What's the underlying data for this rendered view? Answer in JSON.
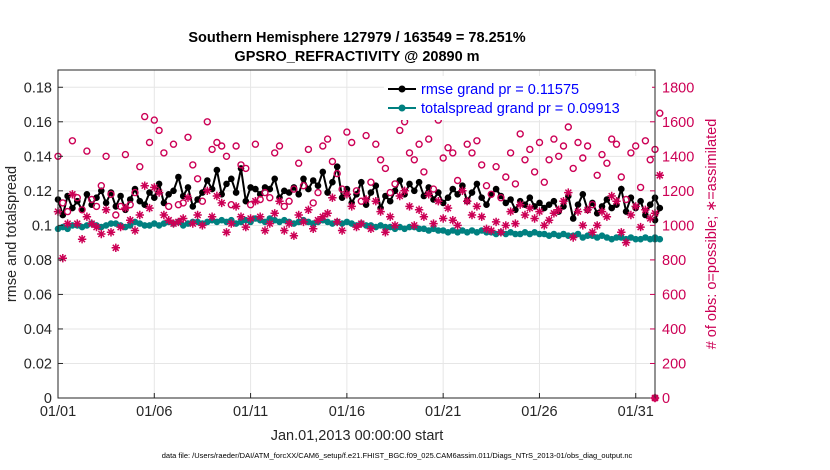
{
  "chart_data": {
    "type": "line",
    "title_line1": "Southern Hemisphere 127979 / 163549 = 78.251%",
    "title_line2": "GPSRO_REFRACTIVITY @ 20890 m",
    "xlabel": "Jan.01,2013 00:00:00 start",
    "ylabel_left": "rmse and totalspread",
    "ylabel_right": "# of obs: o=possible; ∗=assimilated",
    "xlim": [
      0,
      31
    ],
    "ylim_left": [
      0,
      0.19
    ],
    "ylim_right": [
      0,
      1900
    ],
    "x_ticks": [
      0,
      5,
      10,
      15,
      20,
      25,
      30
    ],
    "x_tick_labels": [
      "01/01",
      "01/06",
      "01/11",
      "01/16",
      "01/21",
      "01/26",
      "01/31"
    ],
    "y_ticks_left": [
      0,
      0.02,
      0.04,
      0.06,
      0.08,
      0.1,
      0.12,
      0.14,
      0.16,
      0.18
    ],
    "y_tick_labels_left": [
      "0",
      "0.02",
      "0.04",
      "0.06",
      "0.08",
      "0.1",
      "0.12",
      "0.14",
      "0.16",
      "0.18"
    ],
    "y_ticks_right": [
      0,
      200,
      400,
      600,
      800,
      1000,
      1200,
      1400,
      1600,
      1800
    ],
    "y_tick_labels_right": [
      "0",
      "200",
      "400",
      "600",
      "800",
      "1000",
      "1200",
      "1400",
      "1600",
      "1800"
    ],
    "legend": [
      {
        "label": "rmse grand pr = 0.11575",
        "color": "#000000",
        "text_color": "#0000ff"
      },
      {
        "label": "totalspread grand pr = 0.09913",
        "color": "#008080",
        "text_color": "#0000ff"
      }
    ],
    "series": [
      {
        "name": "rmse",
        "axis": "left",
        "color": "#000000",
        "x_start": 0,
        "x_step": 0.25,
        "values": [
          0.115,
          0.106,
          0.117,
          0.11,
          0.114,
          0.109,
          0.118,
          0.112,
          0.116,
          0.12,
          0.113,
          0.119,
          0.111,
          0.117,
          0.109,
          0.115,
          0.121,
          0.114,
          0.112,
          0.119,
          0.116,
          0.124,
          0.113,
          0.118,
          0.12,
          0.128,
          0.117,
          0.122,
          0.111,
          0.115,
          0.119,
          0.126,
          0.121,
          0.132,
          0.118,
          0.124,
          0.127,
          0.119,
          0.133,
          0.114,
          0.122,
          0.121,
          0.118,
          0.122,
          0.121,
          0.127,
          0.116,
          0.12,
          0.119,
          0.122,
          0.118,
          0.127,
          0.121,
          0.126,
          0.123,
          0.131,
          0.119,
          0.125,
          0.134,
          0.116,
          0.121,
          0.113,
          0.118,
          0.125,
          0.112,
          0.119,
          0.123,
          0.11,
          0.117,
          0.114,
          0.12,
          0.126,
          0.118,
          0.124,
          0.12,
          0.125,
          0.117,
          0.122,
          0.115,
          0.119,
          0.113,
          0.116,
          0.121,
          0.118,
          0.123,
          0.114,
          0.119,
          0.124,
          0.116,
          0.112,
          0.118,
          0.121,
          0.117,
          0.113,
          0.115,
          0.109,
          0.114,
          0.112,
          0.116,
          0.111,
          0.113,
          0.11,
          0.112,
          0.114,
          0.108,
          0.111,
          0.117,
          0.104,
          0.112,
          0.118,
          0.109,
          0.113,
          0.107,
          0.111,
          0.115,
          0.11,
          0.112,
          0.121,
          0.108,
          0.116,
          0.11,
          0.114,
          0.106,
          0.112,
          0.116,
          0.11
        ],
        "last_x": 31,
        "last_value": 0.103
      },
      {
        "name": "totalspread",
        "axis": "left",
        "color": "#008080",
        "x_start": 0,
        "x_step": 0.25,
        "values": [
          0.098,
          0.099,
          0.098,
          0.1,
          0.1,
          0.099,
          0.1,
          0.101,
          0.1,
          0.099,
          0.1,
          0.101,
          0.101,
          0.1,
          0.099,
          0.1,
          0.102,
          0.101,
          0.1,
          0.1,
          0.101,
          0.1,
          0.101,
          0.102,
          0.101,
          0.102,
          0.1,
          0.101,
          0.102,
          0.102,
          0.101,
          0.102,
          0.103,
          0.102,
          0.103,
          0.102,
          0.103,
          0.101,
          0.102,
          0.103,
          0.102,
          0.104,
          0.103,
          0.102,
          0.104,
          0.103,
          0.102,
          0.103,
          0.102,
          0.101,
          0.102,
          0.103,
          0.102,
          0.101,
          0.102,
          0.103,
          0.102,
          0.101,
          0.102,
          0.101,
          0.102,
          0.101,
          0.1,
          0.101,
          0.1,
          0.1,
          0.099,
          0.1,
          0.099,
          0.099,
          0.098,
          0.099,
          0.098,
          0.099,
          0.099,
          0.098,
          0.098,
          0.097,
          0.098,
          0.097,
          0.097,
          0.096,
          0.097,
          0.096,
          0.097,
          0.096,
          0.097,
          0.096,
          0.097,
          0.096,
          0.096,
          0.095,
          0.096,
          0.095,
          0.096,
          0.095,
          0.095,
          0.096,
          0.095,
          0.096,
          0.095,
          0.095,
          0.094,
          0.095,
          0.094,
          0.095,
          0.094,
          0.094,
          0.095,
          0.093,
          0.094,
          0.094,
          0.093,
          0.094,
          0.093,
          0.092,
          0.093,
          0.093,
          0.092,
          0.093,
          0.092,
          0.092,
          0.093,
          0.092,
          0.093,
          0.092
        ],
        "last_x": 31,
        "last_value": 0.092
      },
      {
        "name": "possible obs",
        "axis": "right",
        "color": "#cc0055",
        "marker": "o",
        "x_start": 0,
        "x_step": 0.25,
        "values": [
          1400,
          1130,
          1080,
          1490,
          1160,
          1090,
          1430,
          1150,
          1110,
          1230,
          1400,
          1180,
          1060,
          1110,
          1410,
          1120,
          1190,
          1340,
          1630,
          1480,
          1610,
          1550,
          1420,
          1110,
          1470,
          1120,
          1130,
          1510,
          1350,
          1270,
          1140,
          1600,
          1440,
          1480,
          1460,
          1400,
          1120,
          1460,
          1350,
          1330,
          1120,
          1470,
          1150,
          1190,
          1160,
          1420,
          1460,
          1110,
          1140,
          1210,
          1360,
          1230,
          1440,
          1130,
          1190,
          1460,
          1500,
          1370,
          1300,
          1210,
          1540,
          1480,
          1200,
          1140,
          1520,
          1250,
          1470,
          1380,
          1330,
          1190,
          1240,
          1550,
          1600,
          1420,
          1380,
          1470,
          1310,
          1500,
          1210,
          1610,
          1390,
          1450,
          1420,
          1260,
          1660,
          1470,
          1420,
          1490,
          1350,
          1230,
          1180,
          1340,
          1160,
          1280,
          1420,
          1240,
          1530,
          1380,
          1440,
          1310,
          1480,
          1250,
          1380,
          1500,
          1400,
          1460,
          1570,
          1330,
          1480,
          1390,
          1460,
          1120,
          1290,
          1410,
          1360,
          1500,
          1470,
          1280,
          1150,
          1420,
          1460,
          1220,
          1490,
          1380,
          1440,
          1650
        ],
        "last_x": 31,
        "last_value": 0
      },
      {
        "name": "assimilated obs",
        "axis": "right",
        "color": "#cc0055",
        "marker": "*",
        "x_start": 0,
        "x_step": 0.25,
        "values": [
          1080,
          810,
          1010,
          1180,
          1010,
          920,
          1050,
          1010,
          990,
          950,
          1090,
          960,
          870,
          990,
          1100,
          1030,
          970,
          1060,
          1230,
          1100,
          1220,
          1190,
          1060,
          1030,
          1010,
          1020,
          1040,
          1160,
          1010,
          1060,
          1000,
          1200,
          1050,
          1170,
          1130,
          960,
          1010,
          1110,
          1050,
          990,
          1040,
          1140,
          1050,
          970,
          1010,
          1070,
          1140,
          970,
          1010,
          940,
          1060,
          1020,
          1090,
          980,
          1030,
          1050,
          1070,
          1160,
          1020,
          970,
          1180,
          1110,
          990,
          1010,
          1150,
          980,
          1140,
          1080,
          960,
          1050,
          1000,
          1170,
          1200,
          1110,
          1000,
          1090,
          1050,
          1180,
          1010,
          1140,
          1040,
          1100,
          1030,
          1000,
          1200,
          1140,
          1060,
          1110,
          1050,
          980,
          970,
          1020,
          960,
          1000,
          1080,
          1010,
          1120,
          1060,
          1100,
          1040,
          1080,
          1000,
          1030,
          1070,
          1090,
          1140,
          1190,
          930,
          1080,
          1000,
          1090,
          960,
          1000,
          1080,
          1050,
          1170,
          1140,
          960,
          900,
          1060,
          1110,
          990,
          1090,
          1040,
          1070,
          1290
        ],
        "last_x": 31,
        "last_value": 0
      }
    ]
  },
  "footer": "data file: /Users/raeder/DAI/ATM_forcXX/CAM6_setup/f.e21.FHIST_BGC.f09_025.CAM6assim.011/Diags_NTrS_2013-01/obs_diag_output.nc"
}
